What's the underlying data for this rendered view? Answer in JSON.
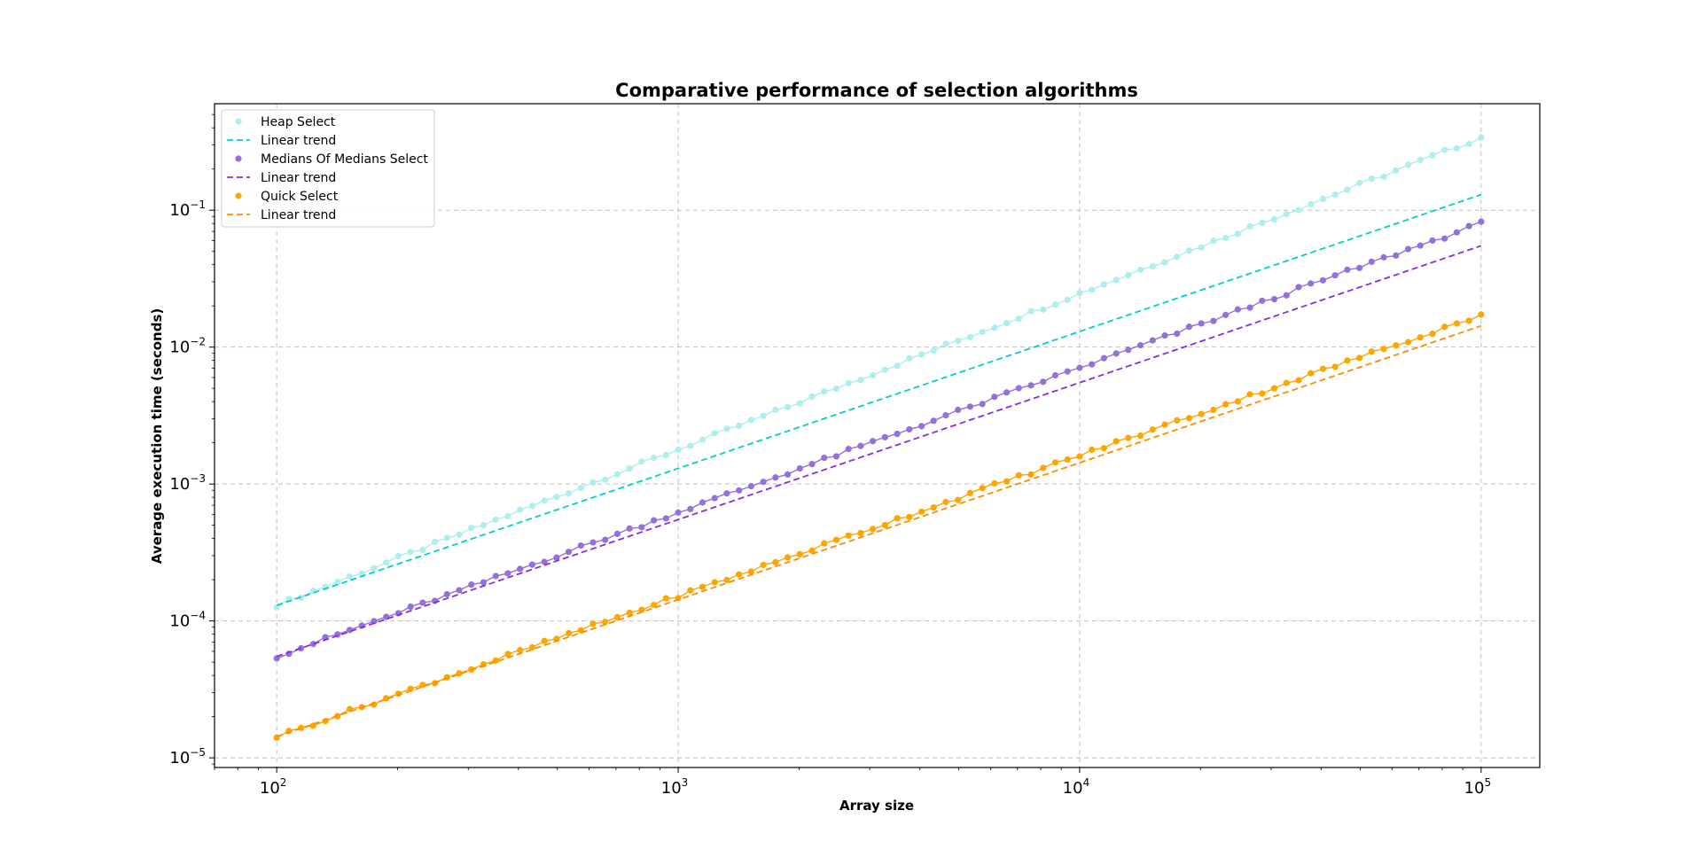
{
  "chart_data": {
    "type": "scatter",
    "title": "Comparative performance of selection algorithms",
    "xlabel": "Array size",
    "ylabel": "Average execution time (seconds)",
    "xscale": "log",
    "yscale": "log",
    "xlim": [
      70,
      140000
    ],
    "ylim": [
      8.5e-06,
      0.6
    ],
    "xticks": [
      {
        "value": 100,
        "base": "10",
        "exp": "2"
      },
      {
        "value": 1000,
        "base": "10",
        "exp": "3"
      },
      {
        "value": 10000,
        "base": "10",
        "exp": "4"
      },
      {
        "value": 100000,
        "base": "10",
        "exp": "5"
      }
    ],
    "yticks": [
      {
        "value": 1e-05,
        "base": "10",
        "exp": "−5"
      },
      {
        "value": 0.0001,
        "base": "10",
        "exp": "−4"
      },
      {
        "value": 0.001,
        "base": "10",
        "exp": "−3"
      },
      {
        "value": 0.01,
        "base": "10",
        "exp": "−2"
      },
      {
        "value": 0.1,
        "base": "10",
        "exp": "−1"
      }
    ],
    "grid": true,
    "legend_position": "top-left",
    "x_range": [
      100,
      100000
    ],
    "num_points": 100,
    "series": [
      {
        "name": "Heap Select",
        "kind": "scatter",
        "color": "#afeeee",
        "y_start": 0.00013,
        "y_end": 0.34
      },
      {
        "name": "Linear trend",
        "kind": "line",
        "color": "#00ced1",
        "y_start": 0.00013,
        "y_end": 0.13
      },
      {
        "name": "Medians Of Medians Select",
        "kind": "scatter",
        "color": "#9370db",
        "y_start": 5.5e-05,
        "y_end": 0.08
      },
      {
        "name": "Linear trend",
        "kind": "line",
        "color": "#8a2be2",
        "y_start": 5.5e-05,
        "y_end": 0.055
      },
      {
        "name": "Quick Select",
        "kind": "scatter",
        "color": "#ffa500",
        "y_start": 1.43e-05,
        "y_end": 0.0172
      },
      {
        "name": "Linear trend",
        "kind": "line",
        "color": "#ff8c00",
        "y_start": 1.43e-05,
        "y_end": 0.0143
      }
    ]
  }
}
